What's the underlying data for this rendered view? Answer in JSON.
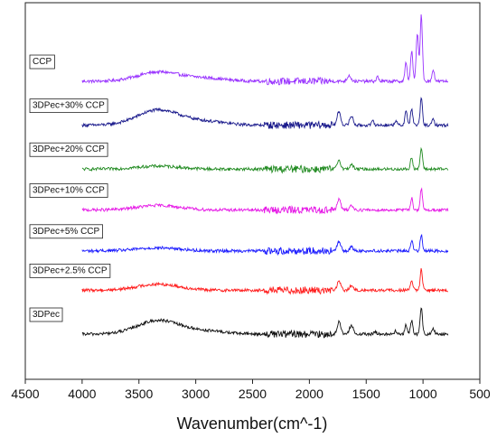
{
  "chart_data": {
    "type": "line",
    "title": "",
    "xlabel": "Wavenumber(cm^-1)",
    "ylabel": "",
    "xlim": [
      4500,
      500
    ],
    "x_reversed": true,
    "x_ticks": [
      4500,
      4000,
      3500,
      3000,
      2500,
      2000,
      1500,
      1000,
      500
    ],
    "y_ticks_shown": false,
    "grid": false,
    "legend": "inline labels at left of each trace",
    "x_range_of_traces": [
      4000,
      780
    ],
    "series": [
      {
        "name": "CCP",
        "color": "#9933ff",
        "baseline": 0.835,
        "peaks": [
          [
            3330,
            0.03
          ],
          [
            2920,
            0.01
          ],
          [
            1650,
            0.02
          ],
          [
            1400,
            0.015
          ],
          [
            1150,
            0.06
          ],
          [
            1100,
            0.1
          ],
          [
            1050,
            0.16
          ],
          [
            1015,
            0.22
          ],
          [
            910,
            0.04
          ]
        ]
      },
      {
        "name": "3DPec+30% CCP",
        "color": "#1a1a8c",
        "baseline": 0.69,
        "peaks": [
          [
            3330,
            0.05
          ],
          [
            2920,
            0.012
          ],
          [
            1740,
            0.045
          ],
          [
            1630,
            0.03
          ],
          [
            1440,
            0.015
          ],
          [
            1240,
            0.015
          ],
          [
            1150,
            0.05
          ],
          [
            1100,
            0.055
          ],
          [
            1015,
            0.09
          ],
          [
            910,
            0.02
          ]
        ]
      },
      {
        "name": "3DPec+20% CCP",
        "color": "#228b22",
        "baseline": 0.545,
        "peaks": [
          [
            3330,
            0.01
          ],
          [
            1740,
            0.03
          ],
          [
            1630,
            0.015
          ],
          [
            1100,
            0.04
          ],
          [
            1015,
            0.07
          ]
        ]
      },
      {
        "name": "3DPec+10% CCP",
        "color": "#e619e6",
        "baseline": 0.41,
        "peaks": [
          [
            3330,
            0.015
          ],
          [
            1740,
            0.035
          ],
          [
            1630,
            0.015
          ],
          [
            1100,
            0.04
          ],
          [
            1015,
            0.07
          ]
        ]
      },
      {
        "name": "3DPec+5% CCP",
        "color": "#1a1aff",
        "baseline": 0.275,
        "peaks": [
          [
            3330,
            0.01
          ],
          [
            1740,
            0.03
          ],
          [
            1630,
            0.012
          ],
          [
            1100,
            0.035
          ],
          [
            1015,
            0.055
          ]
        ]
      },
      {
        "name": "3DPec+2.5% CCP",
        "color": "#ff1a1a",
        "baseline": 0.145,
        "peaks": [
          [
            3330,
            0.02
          ],
          [
            1740,
            0.03
          ],
          [
            1630,
            0.015
          ],
          [
            1100,
            0.035
          ],
          [
            1015,
            0.07
          ]
        ]
      },
      {
        "name": "3DPec",
        "color": "#111111",
        "baseline": 0.0,
        "peaks": [
          [
            3330,
            0.045
          ],
          [
            2920,
            0.01
          ],
          [
            1740,
            0.04
          ],
          [
            1630,
            0.03
          ],
          [
            1420,
            0.01
          ],
          [
            1240,
            0.01
          ],
          [
            1150,
            0.03
          ],
          [
            1100,
            0.045
          ],
          [
            1015,
            0.085
          ],
          [
            910,
            0.02
          ]
        ]
      }
    ]
  }
}
